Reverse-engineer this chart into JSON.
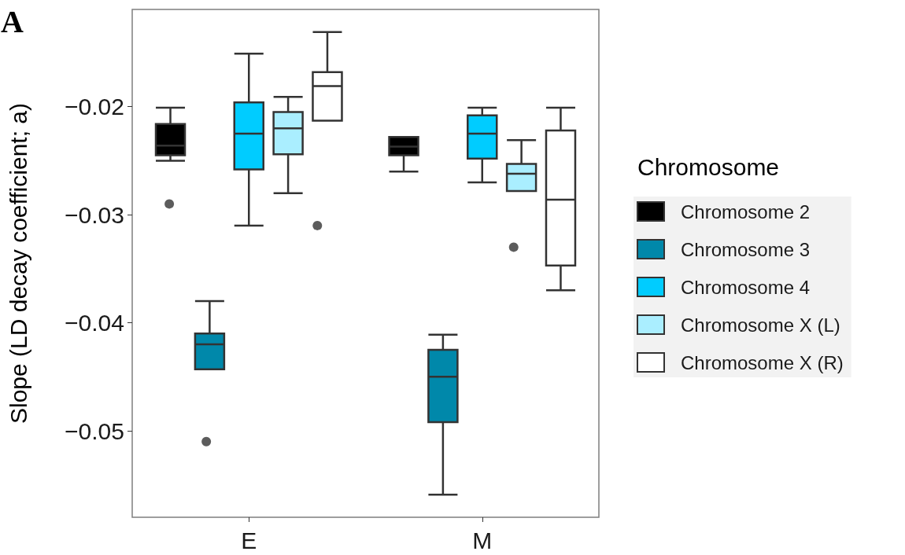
{
  "chart_data": {
    "type": "box",
    "ylabel": "Slope (LD decay coefficient; a)",
    "legend_title": "Chromosome",
    "annotations": [
      "A"
    ],
    "categories": [
      "E",
      "M"
    ],
    "ylim": [
      -0.058,
      -0.011
    ],
    "yticks": [
      {
        "value": -0.05,
        "label": "−0.05"
      },
      {
        "value": -0.04,
        "label": "−0.04"
      },
      {
        "value": -0.03,
        "label": "−0.03"
      },
      {
        "value": -0.02,
        "label": "−0.02"
      }
    ],
    "grid": false,
    "legend": "right",
    "series": [
      {
        "name": "Chromosome 2",
        "color": "#000000",
        "boxes": [
          {
            "low": -0.025,
            "q1": -0.0245,
            "median": -0.0236,
            "q3": -0.0216,
            "high": -0.0201,
            "outliers": [
              -0.029
            ]
          },
          {
            "low": -0.026,
            "q1": -0.0245,
            "median": -0.0237,
            "q3": -0.0228,
            "high": -0.0228
          }
        ]
      },
      {
        "name": "Chromosome 3",
        "color": "#0088aa",
        "boxes": [
          {
            "low": -0.0443,
            "q1": -0.0443,
            "median": -0.042,
            "q3": -0.041,
            "high": -0.038,
            "outliers": [
              -0.051
            ]
          },
          {
            "low": -0.0559,
            "q1": -0.0492,
            "median": -0.045,
            "q3": -0.0425,
            "high": -0.0411
          }
        ]
      },
      {
        "name": "Chromosome 4",
        "color": "#00ccff",
        "boxes": [
          {
            "low": -0.031,
            "q1": -0.0258,
            "median": -0.0225,
            "q3": -0.0196,
            "high": -0.0151
          },
          {
            "low": -0.027,
            "q1": -0.0248,
            "median": -0.0225,
            "q3": -0.0208,
            "high": -0.0201
          }
        ]
      },
      {
        "name": "Chromosome X (L)",
        "color": "#aaeeff",
        "boxes": [
          {
            "low": -0.028,
            "q1": -0.0244,
            "median": -0.022,
            "q3": -0.0205,
            "high": -0.0191
          },
          {
            "low": -0.0278,
            "q1": -0.0278,
            "median": -0.0262,
            "q3": -0.0253,
            "high": -0.0231,
            "outliers": [
              -0.033
            ]
          }
        ]
      },
      {
        "name": "Chromosome X (R)",
        "color": "#ffffff",
        "boxes": [
          {
            "low": -0.0213,
            "q1": -0.0213,
            "median": -0.0181,
            "q3": -0.0168,
            "high": -0.0131,
            "outliers": [
              -0.031
            ]
          },
          {
            "low": -0.037,
            "q1": -0.0347,
            "median": -0.0286,
            "q3": -0.0222,
            "high": -0.0201
          }
        ]
      }
    ]
  }
}
